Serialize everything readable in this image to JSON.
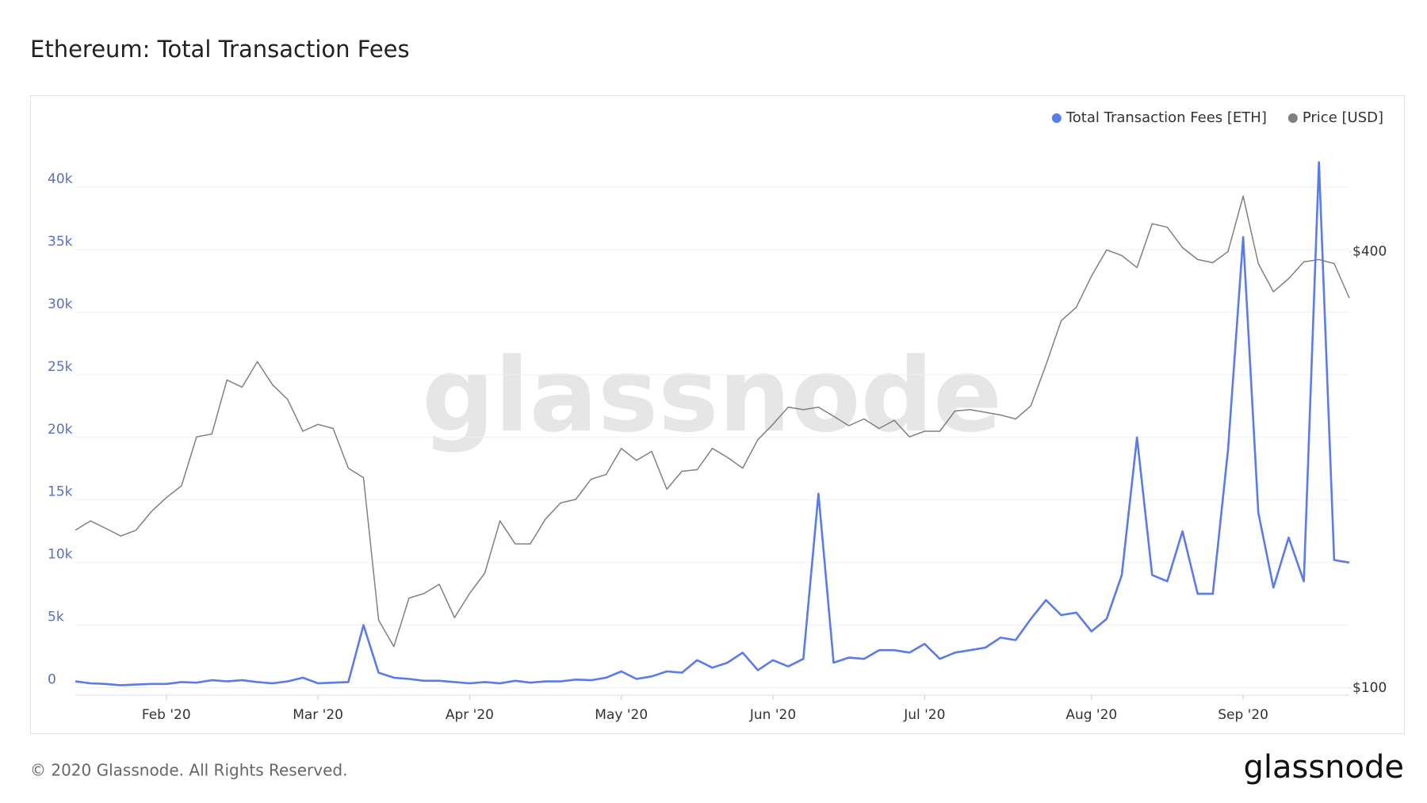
{
  "chart_data": {
    "type": "line",
    "title": "Ethereum: Total Transaction Fees",
    "watermark": "glassnode",
    "footer": "© 2020 Glassnode. All Rights Reserved.",
    "logo": "glassnode",
    "categories": [
      null,
      null,
      null,
      null,
      null,
      null,
      "Feb '20",
      null,
      null,
      null,
      null,
      null,
      null,
      null,
      null,
      null,
      "Mar '20",
      null,
      null,
      null,
      null,
      null,
      null,
      null,
      null,
      null,
      "Apr '20",
      null,
      null,
      null,
      null,
      null,
      null,
      null,
      null,
      null,
      "May '20",
      null,
      null,
      null,
      null,
      null,
      null,
      null,
      null,
      null,
      "Jun '20",
      null,
      null,
      null,
      null,
      null,
      null,
      null,
      null,
      null,
      "Jul '20",
      null,
      null,
      null,
      null,
      null,
      null,
      null,
      null,
      null,
      null,
      "Aug '20",
      null,
      null,
      null,
      null,
      null,
      null,
      null,
      null,
      null,
      "Sep '20",
      null,
      null,
      null,
      null,
      null,
      null,
      null
    ],
    "series": [
      {
        "name": "Total Transaction Fees [ETH]",
        "color": "#5b7be6",
        "axis": "y",
        "values": [
          500,
          350,
          300,
          200,
          250,
          300,
          300,
          450,
          400,
          600,
          500,
          600,
          450,
          350,
          500,
          800,
          350,
          400,
          450,
          5000,
          1200,
          800,
          700,
          550,
          550,
          450,
          350,
          450,
          350,
          550,
          400,
          500,
          500,
          650,
          600,
          800,
          1300,
          700,
          900,
          1300,
          1200,
          2200,
          1600,
          2000,
          2800,
          1400,
          2200,
          1700,
          2300,
          15500,
          2000,
          2400,
          2300,
          3000,
          3000,
          2800,
          3500,
          2300,
          2800,
          3000,
          3200,
          4000,
          3800,
          5500,
          7000,
          5800,
          6000,
          4500,
          5500,
          9000,
          20000,
          9000,
          8500,
          12500,
          7500,
          7500,
          19000,
          36000,
          14000,
          8000,
          12000,
          8500,
          42000,
          10200,
          10000
        ]
      },
      {
        "name": "Price [USD]",
        "color": "#808080",
        "axis": "y2",
        "values": [
          165,
          170,
          166,
          162,
          165,
          175,
          183,
          190,
          222,
          224,
          266,
          260,
          282,
          262,
          250,
          226,
          231,
          228,
          201,
          195,
          124,
          114,
          133,
          135,
          139,
          125,
          135,
          144,
          170,
          158,
          158,
          171,
          180,
          182,
          194,
          197,
          214,
          206,
          212,
          188,
          199,
          200,
          214,
          208,
          201,
          220,
          231,
          244,
          242,
          244,
          237,
          230,
          235,
          228,
          234,
          222,
          226,
          226,
          241,
          242,
          240,
          238,
          235,
          245,
          279,
          321,
          335,
          370,
          402,
          395,
          380,
          437,
          432,
          405,
          390,
          386,
          400,
          477,
          385,
          352,
          367,
          387,
          390,
          385,
          345
        ]
      }
    ],
    "ylim": [
      -600,
      44500
    ],
    "yticks": [
      0,
      {
        "value": 5000,
        "label": "5k"
      },
      {
        "value": 10000,
        "label": "10k"
      },
      {
        "value": 15000,
        "label": "15k"
      },
      {
        "value": 20000,
        "label": "20k"
      },
      {
        "value": 25000,
        "label": "25k"
      },
      {
        "value": 30000,
        "label": "30k"
      },
      {
        "value": 35000,
        "label": "35k"
      },
      {
        "value": 40000,
        "label": "40k"
      }
    ],
    "y2lim": [
      97.7,
      587
    ],
    "y2log": true,
    "y2ticks": [
      {
        "value": 100,
        "label": "$100"
      },
      {
        "value": 400,
        "label": "$400"
      }
    ],
    "grid": true,
    "legend": "top-right"
  }
}
